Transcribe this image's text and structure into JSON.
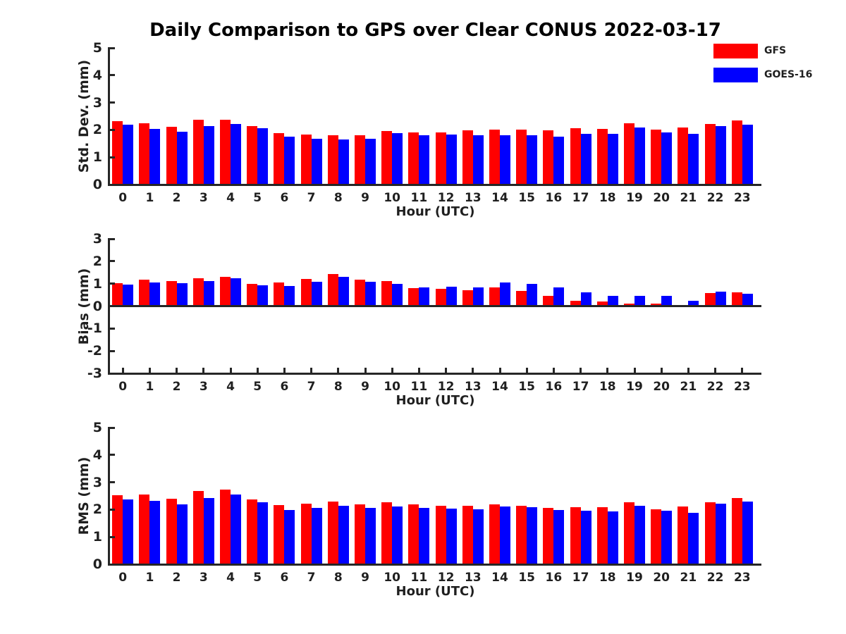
{
  "title": "Daily Comparison to GPS over Clear CONUS 2022-03-17",
  "legend": {
    "position": "top-right",
    "items": [
      {
        "label": "GFS",
        "color": "#ff0000"
      },
      {
        "label": "GOES-16",
        "color": "#0000ff"
      }
    ]
  },
  "colors": {
    "gfs": "#ff0000",
    "goes16": "#0000ff",
    "axis": "#262626",
    "text": "#1f1f1f"
  },
  "chart_data": [
    {
      "type": "bar",
      "ylabel": "Std. Dev. (mm)",
      "xlabel": "Hour (UTC)",
      "ylim": [
        0,
        5
      ],
      "yticks": [
        0,
        1,
        2,
        3,
        4,
        5
      ],
      "grid": false,
      "categories": [
        "0",
        "1",
        "2",
        "3",
        "4",
        "5",
        "6",
        "7",
        "8",
        "9",
        "10",
        "11",
        "12",
        "13",
        "14",
        "15",
        "16",
        "17",
        "18",
        "19",
        "20",
        "21",
        "22",
        "23"
      ],
      "series": [
        {
          "name": "GFS",
          "color": "#ff0000",
          "values": [
            2.32,
            2.25,
            2.12,
            2.37,
            2.36,
            2.14,
            1.88,
            1.83,
            1.81,
            1.81,
            1.96,
            1.92,
            1.91,
            1.99,
            2.02,
            2.02,
            1.98,
            2.06,
            2.04,
            2.24,
            2.0,
            2.08,
            2.22,
            2.34
          ]
        },
        {
          "name": "GOES-16",
          "color": "#0000ff",
          "values": [
            2.19,
            2.04,
            1.94,
            2.14,
            2.22,
            2.07,
            1.75,
            1.68,
            1.64,
            1.68,
            1.88,
            1.81,
            1.82,
            1.8,
            1.8,
            1.8,
            1.74,
            1.86,
            1.85,
            2.1,
            1.9,
            1.86,
            2.14,
            2.19
          ]
        }
      ]
    },
    {
      "type": "bar",
      "ylabel": "Bias (mm)",
      "xlabel": "Hour (UTC)",
      "ylim": [
        -3,
        3
      ],
      "yticks": [
        -3,
        -2,
        -1,
        0,
        1,
        2,
        3
      ],
      "grid": false,
      "categories": [
        "0",
        "1",
        "2",
        "3",
        "4",
        "5",
        "6",
        "7",
        "8",
        "9",
        "10",
        "11",
        "12",
        "13",
        "14",
        "15",
        "16",
        "17",
        "18",
        "19",
        "20",
        "21",
        "22",
        "23"
      ],
      "series": [
        {
          "name": "GFS",
          "color": "#ff0000",
          "values": [
            1.02,
            1.17,
            1.1,
            1.25,
            1.31,
            1.0,
            1.05,
            1.21,
            1.43,
            1.18,
            1.11,
            0.8,
            0.76,
            0.7,
            0.83,
            0.67,
            0.46,
            0.24,
            0.19,
            0.12,
            0.1,
            0.05,
            0.58,
            0.61
          ]
        },
        {
          "name": "GOES-16",
          "color": "#0000ff",
          "values": [
            0.97,
            1.06,
            1.03,
            1.13,
            1.23,
            0.92,
            0.89,
            1.08,
            1.31,
            1.08,
            1.0,
            0.84,
            0.86,
            0.82,
            1.05,
            1.0,
            0.83,
            0.61,
            0.47,
            0.44,
            0.46,
            0.23,
            0.63,
            0.55
          ]
        }
      ]
    },
    {
      "type": "bar",
      "ylabel": "RMS (mm)",
      "xlabel": "Hour (UTC)",
      "ylim": [
        0,
        5
      ],
      "yticks": [
        0,
        1,
        2,
        3,
        4,
        5
      ],
      "grid": false,
      "categories": [
        "0",
        "1",
        "2",
        "3",
        "4",
        "5",
        "6",
        "7",
        "8",
        "9",
        "10",
        "11",
        "12",
        "13",
        "14",
        "15",
        "16",
        "17",
        "18",
        "19",
        "20",
        "21",
        "22",
        "23"
      ],
      "series": [
        {
          "name": "GFS",
          "color": "#ff0000",
          "values": [
            2.53,
            2.54,
            2.39,
            2.67,
            2.73,
            2.37,
            2.16,
            2.21,
            2.3,
            2.19,
            2.26,
            2.18,
            2.13,
            2.15,
            2.2,
            2.14,
            2.06,
            2.08,
            2.08,
            2.26,
            2.02,
            2.11,
            2.28,
            2.43
          ]
        },
        {
          "name": "GOES-16",
          "color": "#0000ff",
          "values": [
            2.38,
            2.31,
            2.18,
            2.42,
            2.54,
            2.27,
            1.99,
            2.07,
            2.13,
            2.07,
            2.12,
            2.06,
            2.03,
            2.02,
            2.12,
            2.08,
            1.99,
            1.95,
            1.93,
            2.14,
            1.96,
            1.89,
            2.22,
            2.29
          ]
        }
      ]
    }
  ]
}
